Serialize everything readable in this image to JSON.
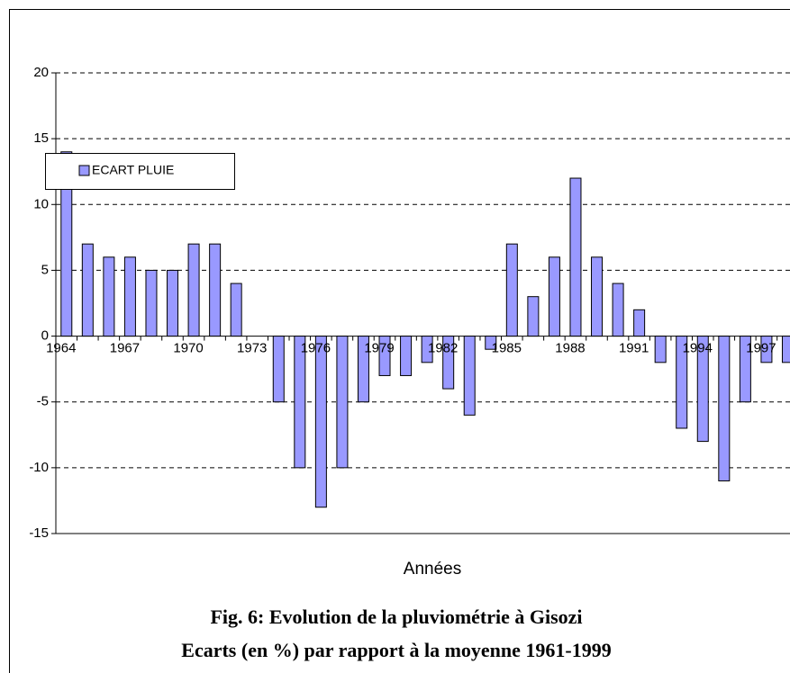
{
  "chart_data": {
    "type": "bar",
    "title": "Fig. 6: Evolution de la pluviométrie à Gisozi",
    "subtitle": "Ecarts (en %) par rapport à la moyenne 1961-1999",
    "x_label": "Années",
    "categories": [
      "1964",
      null,
      null,
      "1967",
      null,
      null,
      "1970",
      null,
      null,
      "1973",
      null,
      null,
      "1976",
      null,
      null,
      "1979",
      null,
      null,
      "1982",
      null,
      null,
      "1985",
      null,
      null,
      "1988",
      null,
      null,
      "1991",
      null,
      null,
      "1994",
      null,
      null,
      "1997",
      null
    ],
    "series": [
      {
        "name": "ECART PLUIE",
        "color": "#9999ff",
        "values": [
          14,
          7,
          6,
          6,
          5,
          5,
          7,
          7,
          4,
          0,
          -5,
          -10,
          -13,
          -10,
          -5,
          -3,
          -3,
          -2,
          -4,
          -6,
          -1,
          7,
          3,
          6,
          12,
          6,
          4,
          2,
          -2,
          -7,
          -8,
          -11,
          -5,
          -2,
          -2
        ]
      }
    ],
    "ylim": [
      -15,
      20
    ],
    "yticks": [
      -15,
      -10,
      -5,
      0,
      5,
      10,
      15,
      20
    ],
    "grid": true,
    "legend": "top-left"
  }
}
